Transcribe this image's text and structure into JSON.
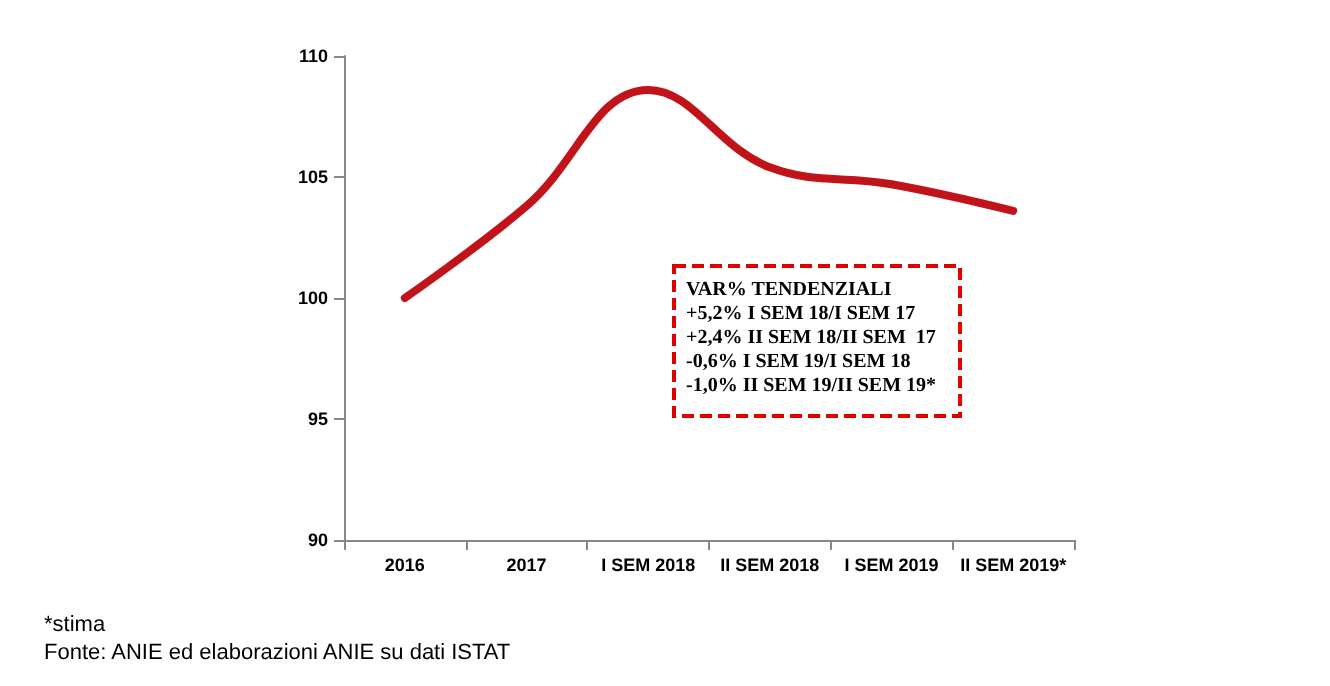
{
  "chart_data": {
    "type": "line",
    "categories": [
      "2016",
      "2017",
      "I SEM 2018",
      "II SEM 2018",
      "I SEM 2019",
      "II SEM 2019*"
    ],
    "series": [
      {
        "color": "#c0141a",
        "values": [
          100,
          103.8,
          108.6,
          105.4,
          104.7,
          103.6
        ]
      }
    ],
    "ylim": [
      90,
      110
    ],
    "yticks": [
      90,
      95,
      100,
      105,
      110
    ],
    "grid": false,
    "marker": "none",
    "line_style": "solid",
    "annotations": [
      "VAR% TENDENZIALI\n+5,2% I SEM 18/I SEM 17\n+2,4% II SEM 18/II SEM  17\n-0,6% I SEM 19/I SEM 18\n-1,0% II SEM 19/II SEM 19*",
      "*stima",
      "Fonte: ANIE ed elaborazioni ANIE su dati ISTAT"
    ]
  }
}
